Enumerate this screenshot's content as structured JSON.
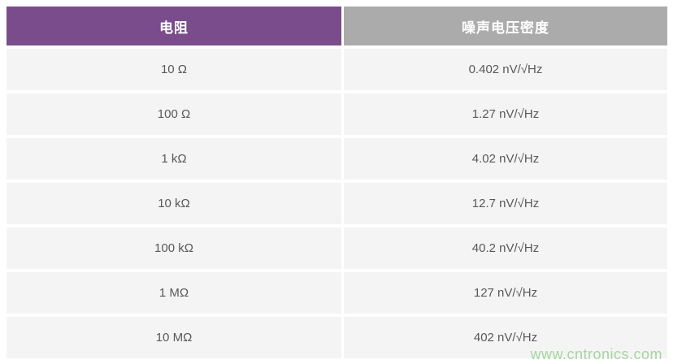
{
  "chart_data": {
    "type": "table",
    "columns": [
      "电阻",
      "噪声电压密度"
    ],
    "rows": [
      {
        "resistance": "10 Ω",
        "noise": "0.402 nV/√Hz"
      },
      {
        "resistance": "100 Ω",
        "noise": "1.27 nV/√Hz"
      },
      {
        "resistance": "1 kΩ",
        "noise": "4.02 nV/√Hz"
      },
      {
        "resistance": "10 kΩ",
        "noise": "12.7 nV/√Hz"
      },
      {
        "resistance": "100 kΩ",
        "noise": "40.2 nV/√Hz"
      },
      {
        "resistance": "1 MΩ",
        "noise": "127 nV/√Hz"
      },
      {
        "resistance": "10 MΩ",
        "noise": "402 nV/√Hz"
      }
    ]
  },
  "watermark": "www.cntronics.com",
  "colors": {
    "header_resistance_bg": "#7a4c8c",
    "header_noise_bg": "#ababab",
    "row_bg": "#f5f4f5",
    "row_text": "#57585a",
    "header_text": "#ffffff",
    "watermark_text": "#a5d69f"
  }
}
